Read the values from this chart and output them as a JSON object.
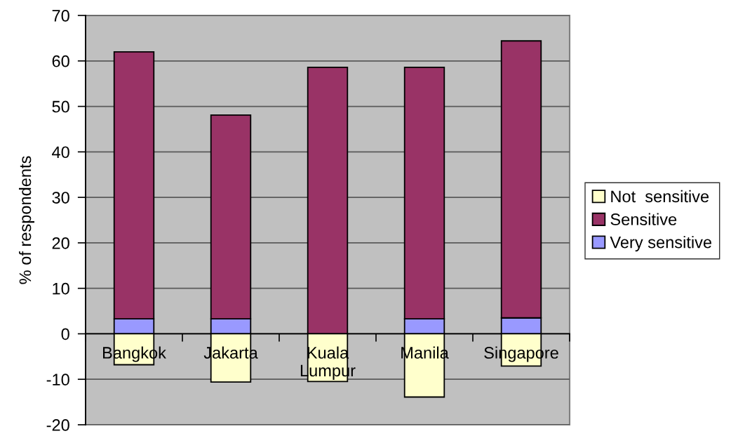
{
  "chart_data": {
    "type": "bar",
    "stacked": true,
    "ylabel": "% of respondents",
    "categories": [
      "Bangkok",
      "Jakarta",
      "Kuala\nLumpur",
      "Manila",
      "Singapore"
    ],
    "series": [
      {
        "name": "Very sensitive",
        "color": "#9999ff",
        "values": [
          3.3,
          3.3,
          null,
          3.3,
          3.5
        ]
      },
      {
        "name": "Sensitive",
        "color": "#993366",
        "values": [
          58.7,
          44.8,
          58.6,
          55.3,
          60.9
        ]
      },
      {
        "name": "Not  sensitive",
        "color": "#ffffcc",
        "values": [
          -6.8,
          -10.6,
          -10.5,
          -13.9,
          -7.1
        ]
      }
    ],
    "ylim": [
      -20,
      70
    ],
    "yticks": [
      -20,
      -10,
      0,
      10,
      20,
      30,
      40,
      50,
      60,
      70
    ],
    "grid": "y",
    "legend": "right"
  }
}
